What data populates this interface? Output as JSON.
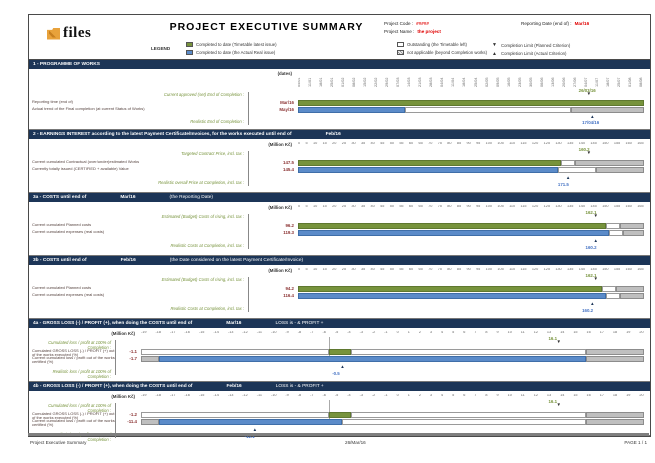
{
  "header": {
    "logo_text": "files",
    "title": "PROJECT  EXECUTIVE  SUMMARY",
    "project_code_label": "Project Code :",
    "project_code": "#####",
    "project_name_label": "Project Name :",
    "project_name": "the project",
    "reporting_date_label": "Reporting Date (end of) :",
    "reporting_date": "Mar/16",
    "legend_label": "LEGEND",
    "legend": [
      {
        "swatch": "green",
        "label": "Completed to date (Timetable latest issue)"
      },
      {
        "swatch": "blue",
        "label": "Completed to date (the Actual Real issue)"
      },
      {
        "swatch": "white",
        "label": "Outstanding (the Timetable left)"
      },
      {
        "swatch": "hatch",
        "label": "not applicable (beyond Completion works)"
      },
      {
        "swatch": "tri-down",
        "label": "Completion Limit (Planned Criterion)"
      },
      {
        "swatch": "tri-up",
        "label": "Completion Limit (Actual Criterion)"
      }
    ]
  },
  "footer": {
    "left": "Project Executive Summary",
    "center": "26/Mar/16",
    "right": "PAGE 1 / 1"
  },
  "colors": {
    "navy": "#1c3557",
    "green": "#77933C",
    "blue": "#5b8bc9",
    "gray": "#bfbfbf",
    "red": "#e00000",
    "value_blue": "#4472c4",
    "orange": "#e8a23b"
  },
  "chart_data": [
    {
      "id": "1",
      "type": "bar",
      "layout": "wide",
      "tick_style": "rotated",
      "body_h": 60,
      "title": "1 - PROGRAMME OF WORKS",
      "title_value": "",
      "title_suffix": "",
      "units": "(dates)",
      "ticks": [
        "04/01",
        "11/01",
        "18/01",
        "25/01",
        "01/02",
        "08/02",
        "15/02",
        "22/02",
        "29/02",
        "07/03",
        "14/03",
        "21/03",
        "28/03",
        "04/04",
        "11/04",
        "18/04",
        "25/04",
        "02/05",
        "09/05",
        "16/05",
        "23/05",
        "30/05",
        "06/06",
        "13/06",
        "20/06",
        "27/06",
        "04/07",
        "11/07",
        "18/07",
        "25/07",
        "01/08",
        "08/08"
      ],
      "sub": {
        "label": "Current approved (set) End of Completion :",
        "value": "26/03/16",
        "pct": 84
      },
      "rows": [
        {
          "label": "Reporting time (end of)",
          "value": "Mar/16",
          "segments": [
            {
              "c": "green",
              "f": 0,
              "t": 100
            }
          ]
        },
        {
          "label": "Actual trend of the Final completion (at current Status of Works)",
          "value": "May/16",
          "segments": [
            {
              "c": "blue",
              "f": 0,
              "t": 31
            },
            {
              "c": "white",
              "f": 31,
              "t": 79
            },
            {
              "c": "gray",
              "f": 79,
              "t": 100
            }
          ]
        }
      ],
      "bottom": {
        "label": "Realistic End of Completion :",
        "value": "17/04/16",
        "pct": 85
      }
    },
    {
      "id": "2",
      "type": "bar",
      "layout": "wide",
      "tick_style": "flat",
      "body_h": 53,
      "title": "2 - EARNINGS INTEREST according to the latest Payment Certificate/Invoices, for the works executed until end of",
      "title_value": "Feb/16",
      "title_suffix": "",
      "units": "(Million Kč)",
      "ticks": [
        "0",
        "5",
        "10",
        "15",
        "20",
        "25",
        "30",
        "35",
        "40",
        "45",
        "50",
        "55",
        "60",
        "65",
        "70",
        "75",
        "80",
        "85",
        "90",
        "95",
        "100",
        "105",
        "110",
        "115",
        "120",
        "125",
        "130",
        "135",
        "140",
        "145",
        "150",
        "155",
        "160",
        "165"
      ],
      "sub": {
        "label": "Targeted Contract Price, incl. tax :",
        "value": "160.2",
        "pct": 84
      },
      "rows": [
        {
          "label": "Current cumulated Contractual (over/under)estimated Works",
          "value": "147.5",
          "segments": [
            {
              "c": "green",
              "f": 0,
              "t": 76
            },
            {
              "c": "white",
              "f": 76,
              "t": 80
            },
            {
              "c": "gray",
              "f": 80,
              "t": 100
            }
          ]
        },
        {
          "label": "Currently totally issued (CERTIFIED + available) Value",
          "value": "145.4",
          "segments": [
            {
              "c": "blue",
              "f": 0,
              "t": 75
            },
            {
              "c": "white",
              "f": 75,
              "t": 86
            },
            {
              "c": "gray",
              "f": 86,
              "t": 100
            }
          ]
        }
      ],
      "bottom": {
        "label": "Realistic overall Price at Completion, incl. tax :",
        "value": "171.5",
        "pct": 78
      }
    },
    {
      "id": "3a",
      "type": "bar",
      "layout": "wide",
      "tick_style": "flat",
      "body_h": 53,
      "title": "3a - COSTS until end of",
      "title_value": "Mar/16",
      "title_suffix": "(the Reporting Date)",
      "units": "(Million Kč)",
      "ticks": [
        "0",
        "5",
        "10",
        "15",
        "20",
        "25",
        "30",
        "35",
        "40",
        "45",
        "50",
        "55",
        "60",
        "65",
        "70",
        "75",
        "80",
        "85",
        "90",
        "95",
        "100",
        "105",
        "110",
        "115",
        "120",
        "125",
        "130",
        "135",
        "140",
        "145",
        "150",
        "155",
        "160",
        "165"
      ],
      "sub": {
        "label": "Estimated (Budget) Costs of rising, incl. tax :",
        "value": "162.1",
        "pct": 86
      },
      "rows": [
        {
          "label": "Current cumulated Planned costs",
          "value": "96.2",
          "segments": [
            {
              "c": "green",
              "f": 0,
              "t": 89
            },
            {
              "c": "white",
              "f": 89,
              "t": 93
            },
            {
              "c": "gray",
              "f": 93,
              "t": 100
            }
          ]
        },
        {
          "label": "Current cumulated expenses (real costs)",
          "value": "119.3",
          "segments": [
            {
              "c": "blue",
              "f": 0,
              "t": 90
            },
            {
              "c": "white",
              "f": 90,
              "t": 94
            },
            {
              "c": "gray",
              "f": 94,
              "t": 100
            }
          ]
        }
      ],
      "bottom": {
        "label": "Realistic Costs at Completion, incl. tax :",
        "value": "160.2",
        "pct": 86
      }
    },
    {
      "id": "3b",
      "type": "bar",
      "layout": "wide",
      "tick_style": "flat",
      "body_h": 53,
      "title": "3b - COSTS until end of",
      "title_value": "Feb/16",
      "title_suffix": "(the Date considered on the latest Payment Certificate/Invoice)",
      "units": "(Million Kč)",
      "ticks": [
        "0",
        "5",
        "10",
        "15",
        "20",
        "25",
        "30",
        "35",
        "40",
        "45",
        "50",
        "55",
        "60",
        "65",
        "70",
        "75",
        "80",
        "85",
        "90",
        "95",
        "100",
        "105",
        "110",
        "115",
        "120",
        "125",
        "130",
        "135",
        "140",
        "145",
        "150",
        "155",
        "160",
        "165"
      ],
      "sub": {
        "label": "Estimated (Budget) Costs of rising, incl. tax :",
        "value": "162.1",
        "pct": 86
      },
      "rows": [
        {
          "label": "Current cumulated Planned costs",
          "value": "94.2",
          "segments": [
            {
              "c": "green",
              "f": 0,
              "t": 88
            },
            {
              "c": "white",
              "f": 88,
              "t": 92
            },
            {
              "c": "gray",
              "f": 92,
              "t": 100
            }
          ]
        },
        {
          "label": "Current cumulated expenses (real costs)",
          "value": "116.4",
          "segments": [
            {
              "c": "blue",
              "f": 0,
              "t": 89
            },
            {
              "c": "white",
              "f": 89,
              "t": 93
            },
            {
              "c": "gray",
              "f": 93,
              "t": 100
            }
          ]
        }
      ],
      "bottom": {
        "label": "Realistic Costs at Completion, incl. tax :",
        "value": "160.2",
        "pct": 85
      }
    },
    {
      "id": "4a",
      "type": "bar",
      "layout": "narrow",
      "tick_style": "flat",
      "body_h": 53,
      "zero_pct": 37.4,
      "title": "4a - GROSS LOSS (-) / PROFIT (+), when doing the COSTS until end of",
      "title_value": "Mar/16",
      "title_suffix": "LOSS is -  &  PROFIT +",
      "units": "(Million Kč)",
      "ticks": [
        "-19",
        "-18",
        "-17",
        "-16",
        "-15",
        "-14",
        "-13",
        "-12",
        "-11",
        "-10",
        "-9",
        "-8",
        "-7",
        "-6",
        "-5",
        "-4",
        "-3",
        "-2",
        "-1",
        "0",
        "1",
        "2",
        "3",
        "4",
        "5",
        "6",
        "7",
        "8",
        "9",
        "10",
        "11",
        "12",
        "13",
        "14",
        "15",
        "16",
        "17",
        "18",
        "19",
        "20"
      ],
      "sub": {
        "label": "Cumulated loss / profit at 100% of Completion :",
        "value": "16.1",
        "pct": 83
      },
      "rows": [
        {
          "label": "Cumulated GROSS LOSS (-) / PROFIT (+) out of the works executed (%)",
          "value": "-1.1",
          "segments": [
            {
              "c": "white",
              "f": 0,
              "t": 37.4
            },
            {
              "c": "green",
              "f": 37.4,
              "t": 41.7
            },
            {
              "c": "white",
              "f": 41.7,
              "t": 88.5
            },
            {
              "c": "gray",
              "f": 88.5,
              "t": 100
            }
          ]
        },
        {
          "label": "Current cumulated loss / profit out of the works certified (%)",
          "value": "-1.7",
          "segments": [
            {
              "c": "gray",
              "f": 0,
              "t": 3.5
            },
            {
              "c": "blue",
              "f": 3.5,
              "t": 88.5
            },
            {
              "c": "gray",
              "f": 88.5,
              "t": 100
            }
          ]
        }
      ],
      "bottom": {
        "label": "Realistic loss / profit at 100% of Completion :",
        "value": "-0.5",
        "pct": 40
      }
    },
    {
      "id": "4b",
      "type": "bar",
      "layout": "narrow",
      "tick_style": "flat",
      "body_h": 44,
      "zero_pct": 37.4,
      "title": "4b - GROSS LOSS (-) / PROFIT (+), when doing the COSTS until end of",
      "title_value": "Feb/16",
      "title_suffix": "LOSS is -  &  PROFIT +",
      "units": "(Million Kč)",
      "ticks": [
        "-19",
        "-18",
        "-17",
        "-16",
        "-15",
        "-14",
        "-13",
        "-12",
        "-11",
        "-10",
        "-9",
        "-8",
        "-7",
        "-6",
        "-5",
        "-4",
        "-3",
        "-2",
        "-1",
        "0",
        "1",
        "2",
        "3",
        "4",
        "5",
        "6",
        "7",
        "8",
        "9",
        "10",
        "11",
        "12",
        "13",
        "14",
        "15",
        "16",
        "17",
        "18",
        "19",
        "20"
      ],
      "sub": {
        "label": "Cumulated loss / profit at 100% of Completion :",
        "value": "16.1",
        "pct": 83
      },
      "rows": [
        {
          "label": "Cumulated GROSS LOSS (-) / PROFIT (+) out of the works executed (%)",
          "value": "-1.2",
          "segments": [
            {
              "c": "white",
              "f": 0,
              "t": 37.4
            },
            {
              "c": "green",
              "f": 37.4,
              "t": 41.7
            },
            {
              "c": "white",
              "f": 41.7,
              "t": 88.5
            },
            {
              "c": "gray",
              "f": 88.5,
              "t": 100
            }
          ]
        },
        {
          "label": "Current cumulated loss / profit out of the works certified (%)",
          "value": "-11.4",
          "segments": [
            {
              "c": "gray",
              "f": 0,
              "t": 3.5
            },
            {
              "c": "blue",
              "f": 3.5,
              "t": 40
            },
            {
              "c": "white",
              "f": 40,
              "t": 88.5
            },
            {
              "c": "gray",
              "f": 88.5,
              "t": 100
            }
          ]
        }
      ],
      "bottom": {
        "label": "Realistic loss / profit at 100% of Completion :",
        "value": "-12.1",
        "pct": 22.6
      }
    }
  ]
}
